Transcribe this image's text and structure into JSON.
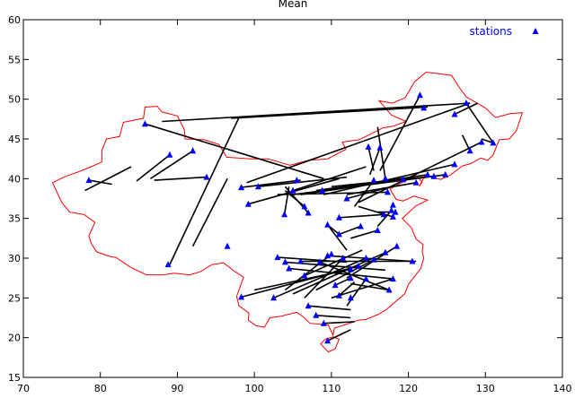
{
  "chart_data": {
    "type": "scatter",
    "title": "Mean",
    "xlabel": "",
    "ylabel": "",
    "xlim": [
      70,
      140
    ],
    "ylim": [
      15,
      60
    ],
    "xticks": [
      70,
      80,
      90,
      100,
      110,
      120,
      130,
      140
    ],
    "yticks": [
      15,
      20,
      25,
      30,
      35,
      40,
      45,
      50,
      55,
      60
    ],
    "grid": false,
    "legend": "top-right",
    "colors": {
      "marker": "#0000ff",
      "line": "#000000",
      "border": "#ff0000",
      "legend_text": "#0000ff"
    },
    "series": [
      {
        "name": "stations",
        "marker": "triangle",
        "x": [
          85.8,
          78.5,
          89.0,
          92.0,
          88.8,
          93.8,
          96.5,
          98.3,
          99.2,
          100.5,
          103.9,
          105.0,
          105.5,
          107.0,
          111.0,
          112.0,
          115.5,
          117.3,
          118.0,
          119.3,
          121.5,
          122.0,
          126.0,
          127.5,
          129.5,
          131.0,
          128.0,
          126.0,
          124.8,
          123.3,
          122.5,
          121.0,
          116.3,
          114.8,
          117.0,
          118.0,
          118.3,
          117.8,
          116.8,
          116.0,
          113.8,
          111.0,
          109.5,
          106.5,
          108.8,
          103.0,
          104.0,
          104.5,
          106.0,
          106.5,
          108.5,
          109.5,
          110.0,
          111.5,
          112.5,
          113.5,
          114.5,
          115.5,
          117.0,
          118.5,
          120.5,
          118.0,
          117.5,
          114.5,
          112.5,
          111.0,
          110.5,
          112.5,
          108.0,
          107.0,
          109.0,
          102.5,
          98.3,
          109.5
        ],
        "y": [
          46.9,
          39.8,
          43.0,
          43.5,
          29.2,
          40.2,
          31.5,
          38.9,
          36.8,
          39.0,
          35.5,
          38.5,
          39.8,
          35.7,
          35.1,
          37.5,
          39.8,
          38.3,
          36.7,
          39.9,
          50.5,
          48.9,
          48.1,
          49.5,
          44.6,
          44.5,
          43.5,
          41.8,
          40.5,
          40.3,
          40.5,
          39.5,
          43.9,
          44.0,
          40.0,
          35.2,
          35.8,
          36.0,
          35.5,
          33.5,
          34.0,
          33.0,
          34.2,
          36.5,
          38.5,
          30.1,
          29.5,
          28.7,
          29.6,
          27.8,
          29.5,
          30.3,
          30.5,
          30.0,
          28.6,
          29.0,
          30.0,
          29.8,
          30.7,
          31.5,
          29.6,
          27.4,
          26.0,
          27.4,
          27.5,
          25.3,
          26.6,
          25.0,
          22.8,
          24.0,
          21.8,
          25.0,
          25.1,
          19.6
        ]
      }
    ]
  }
}
